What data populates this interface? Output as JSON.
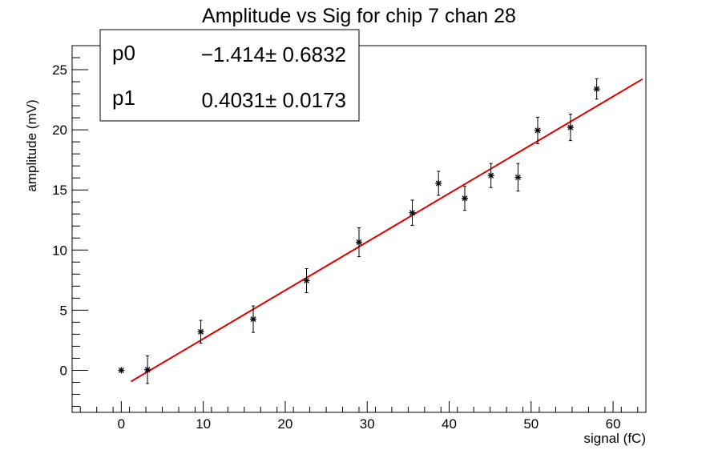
{
  "chart_data": {
    "type": "scatter",
    "title": "Amplitude vs Sig for chip 7 chan 28",
    "xlabel": "signal (fC)",
    "ylabel": "amplitude (mV)",
    "xlim": [
      -6,
      64
    ],
    "ylim": [
      -3.5,
      27
    ],
    "xticks": [
      0,
      10,
      20,
      30,
      40,
      50,
      60
    ],
    "yticks": [
      0,
      5,
      10,
      15,
      20,
      25
    ],
    "xtick_labels": [
      "0",
      "10",
      "20",
      "30",
      "40",
      "50",
      "60"
    ],
    "ytick_labels": [
      "0",
      "5",
      "10",
      "15",
      "20",
      "25"
    ],
    "grid": false,
    "legend_position": "top-left",
    "points": [
      {
        "x": 0.0,
        "y": 0.0,
        "err": 0
      },
      {
        "x": 3.2,
        "y": 0.05,
        "err": 1.15
      },
      {
        "x": 9.7,
        "y": 3.2,
        "err": 0.95
      },
      {
        "x": 16.1,
        "y": 4.25,
        "err": 1.1
      },
      {
        "x": 22.6,
        "y": 7.45,
        "err": 1.0
      },
      {
        "x": 29.0,
        "y": 10.65,
        "err": 1.2
      },
      {
        "x": 35.5,
        "y": 13.1,
        "err": 1.05
      },
      {
        "x": 38.7,
        "y": 15.55,
        "err": 1.0
      },
      {
        "x": 41.9,
        "y": 14.3,
        "err": 1.0
      },
      {
        "x": 45.1,
        "y": 16.2,
        "err": 1.0
      },
      {
        "x": 48.4,
        "y": 16.05,
        "err": 1.15
      },
      {
        "x": 50.8,
        "y": 19.95,
        "err": 1.1
      },
      {
        "x": 54.8,
        "y": 20.2,
        "err": 1.1
      },
      {
        "x": 58.0,
        "y": 23.4,
        "err": 0.85
      }
    ],
    "fit": {
      "p0": -1.414,
      "p1": 0.4031,
      "x_range": [
        1.2,
        63.6
      ]
    },
    "colors": {
      "fit_line": "#e00000",
      "points": "#000000",
      "axes": "#000000"
    }
  },
  "stats": {
    "rows": [
      {
        "name": "p0",
        "value": "−1.414± 0.6832"
      },
      {
        "name": "p1",
        "value": "0.4031± 0.0173"
      }
    ]
  }
}
